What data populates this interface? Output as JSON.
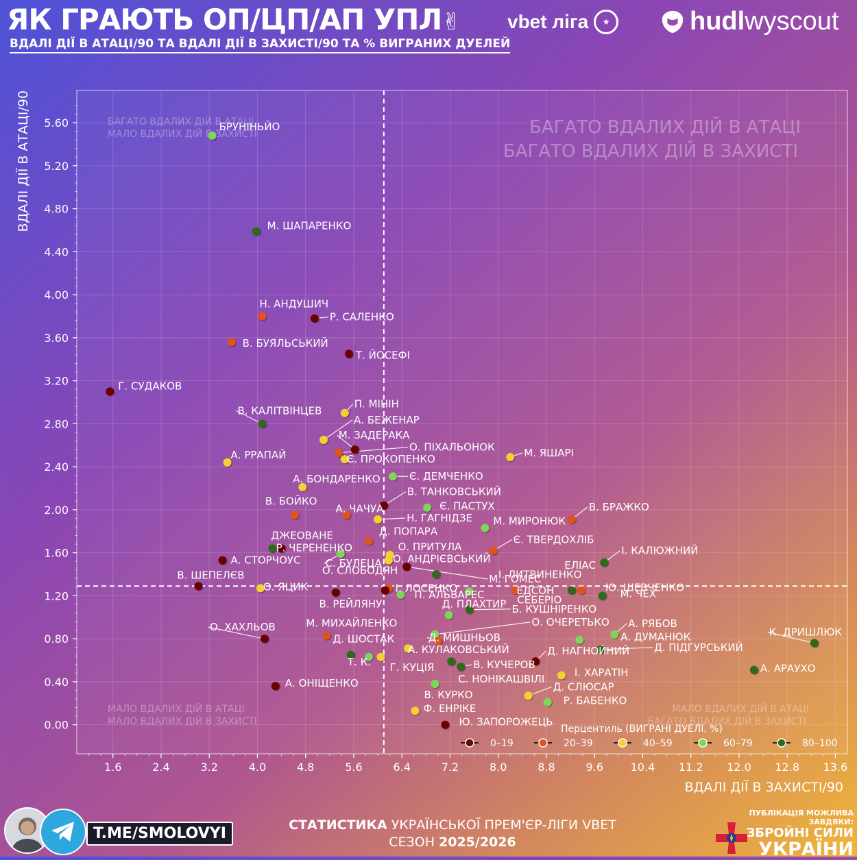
{
  "header": {
    "title": "ЯК ГРАЮТЬ ОП/ЦП/АП УПЛ",
    "subtitle": "ВДАЛІ ДІЇ В АТАЦІ/90 ТА ВДАЛІ ДІЇ В ЗАХИСТІ/90 ТА % ВИГРАНИХ ДУЕЛЕЙ",
    "league_logo_text": "vbet ліга",
    "brand_bold": "hudl",
    "brand_light": "wyscout"
  },
  "footer": {
    "handle": "T.ME/SMOLOVYI",
    "stats_line1_bold": "СТАТИСТИКА",
    "stats_line1_rest": " УКРАЇНСЬКОЇ ПРЕМ'ЄР-ЛІГИ VBET",
    "stats_line2_prefix": "СЕЗОН ",
    "stats_line2_bold": "2025/2026",
    "zsu_small": "ПУБЛІКАЦІЯ МОЖЛИВА ЗАВДЯКИ:",
    "zsu_line1": "ЗБРОЙНІ СИЛИ",
    "zsu_line2": "УКРАЇНИ"
  },
  "colors": {
    "0-19": "#6b0606",
    "20-39": "#e0521a",
    "40-59": "#f5d030",
    "60-79": "#7dd65a",
    "80-100": "#2f6a1e"
  },
  "chart_data": {
    "type": "scatter",
    "xlabel": "ВДАЛІ ДІЇ В ЗАХИСТІ/90",
    "ylabel": "ВДАЛІ ДІЇ В АТАЦІ/90",
    "xlim": [
      1.0,
      13.8
    ],
    "ylim": [
      -0.27,
      5.9
    ],
    "xticks": [
      1.6,
      2.4,
      3.2,
      4.0,
      4.8,
      5.6,
      6.4,
      7.2,
      8.0,
      8.8,
      9.6,
      10.4,
      11.2,
      12.0,
      12.8,
      13.6
    ],
    "yticks": [
      0.0,
      0.4,
      0.8,
      1.2,
      1.6,
      2.0,
      2.4,
      2.8,
      3.2,
      3.6,
      4.0,
      4.4,
      4.8,
      5.2,
      5.6
    ],
    "mean_x": 6.1,
    "mean_y": 1.29,
    "quadrants": {
      "top_left_1": "БАГАТО ВДАЛИХ ДІЙ В АТАЦІ",
      "top_left_2": "МАЛО ВДАЛИХ ДІЙ В ЗАХИСТІ",
      "top_right_1": "БАГАТО ВДАЛИХ ДІЙ В АТАЦІ",
      "top_right_2": "БАГАТО ВДАЛИХ ДІЙ В ЗАХИСТІ",
      "bottom_left_1": "МАЛО ВДАЛИХ ДІЙ В АТАЦІ",
      "bottom_left_2": "МАЛО ВДАЛИХ ДІЙ В ЗАХИСТІ",
      "bottom_right_1": "МАЛО ВДАЛИХ ДІЙ В АТАЦІ",
      "bottom_right_2": "БАГАТО ВДАЛИХ ДІЙ В ЗАХИСТІ"
    },
    "legend": {
      "title": "Перцентиль (ВИГРАНІ ДУЕЛІ, %)",
      "entries": [
        "0–19",
        "20–39",
        "40–59",
        "60–79",
        "80–100"
      ],
      "keys": [
        "0-19",
        "20-39",
        "40-59",
        "60-79",
        "80-100"
      ],
      "placement": "bottom-right"
    },
    "points": [
      {
        "name": "БРУНІНЬЙО",
        "x": 3.25,
        "y": 5.48,
        "g": "60-79"
      },
      {
        "name": "М. ШАПАРЕНКО",
        "x": 3.98,
        "y": 4.59,
        "g": "80-100"
      },
      {
        "name": "Н. АНДУШИЧ",
        "x": 4.08,
        "y": 3.8,
        "g": "20-39"
      },
      {
        "name": "Р. САЛЕНКО",
        "x": 4.95,
        "y": 3.78,
        "g": "0-19"
      },
      {
        "name": "В. БУЯЛЬСЬКИЙ",
        "x": 3.57,
        "y": 3.56,
        "g": "20-39"
      },
      {
        "name": "Т. ЙОСЕФІ",
        "x": 5.52,
        "y": 3.45,
        "g": "0-19"
      },
      {
        "name": "Г. СУДАКОВ",
        "x": 1.55,
        "y": 3.1,
        "g": "0-19"
      },
      {
        "name": "П. МІНІН",
        "x": 5.45,
        "y": 2.9,
        "g": "40-59"
      },
      {
        "name": "В. КАЛІТВІНЦЕВ",
        "x": 4.08,
        "y": 2.8,
        "g": "80-100"
      },
      {
        "name": "А. БЕЖЕНАР",
        "x": 5.1,
        "y": 2.65,
        "g": "40-59"
      },
      {
        "name": "М. ЗАДЕРАКА",
        "x": 5.62,
        "y": 2.56,
        "g": "0-19"
      },
      {
        "name": "О. ПІХАЛЬОНОК",
        "x": 5.35,
        "y": 2.53,
        "g": "20-39"
      },
      {
        "name": "М. ЯШАРІ",
        "x": 8.2,
        "y": 2.49,
        "g": "40-59"
      },
      {
        "name": "Є. ПРОКОПЕНКО",
        "x": 5.45,
        "y": 2.47,
        "g": "40-59"
      },
      {
        "name": "А. РРАПАЙ",
        "x": 3.5,
        "y": 2.44,
        "g": "40-59"
      },
      {
        "name": "Є. ДЕМЧЕНКО",
        "x": 6.25,
        "y": 2.31,
        "g": "60-79"
      },
      {
        "name": "А. БОНДАРЕНКО",
        "x": 4.75,
        "y": 2.21,
        "g": "40-59"
      },
      {
        "name": "В. ТАНКОВСЬКИЙ",
        "x": 6.1,
        "y": 2.04,
        "g": "0-19"
      },
      {
        "name": "Є. ПАСТУХ",
        "x": 6.82,
        "y": 2.02,
        "g": "60-79"
      },
      {
        "name": "В. БОЙКО",
        "x": 4.62,
        "y": 1.95,
        "g": "20-39"
      },
      {
        "name": "А. ЧАЧУА",
        "x": 5.48,
        "y": 1.95,
        "g": "20-39"
      },
      {
        "name": "Н. ГАГНІДЗЕ",
        "x": 6.0,
        "y": 1.91,
        "g": "40-59"
      },
      {
        "name": "В. БРАЖКО",
        "x": 9.22,
        "y": 1.91,
        "g": "20-39"
      },
      {
        "name": "М. МИРОНЮК",
        "x": 7.78,
        "y": 1.83,
        "g": "60-79"
      },
      {
        "name": "Д. ПОПАРА",
        "x": 5.85,
        "y": 1.71,
        "g": "20-39"
      },
      {
        "name": "ДЖЕОВАНЕ",
        "x": 4.25,
        "y": 1.64,
        "g": "80-100"
      },
      {
        "name": "Р. ЧЕРЕНЕНКО",
        "x": 4.4,
        "y": 1.64,
        "g": "0-19"
      },
      {
        "name": "О. ПРИТУЛА",
        "x": 6.2,
        "y": 1.58,
        "g": "40-59"
      },
      {
        "name": "Є. ТВЕРДОХЛІБ",
        "x": 7.92,
        "y": 1.62,
        "g": "20-39"
      },
      {
        "name": "А. СТОРЧОУС",
        "x": 3.42,
        "y": 1.53,
        "g": "0-19"
      },
      {
        "name": "С. БУЛЕЦА",
        "x": 5.38,
        "y": 1.59,
        "g": "60-79"
      },
      {
        "name": "О. АНДРІЄВСЬКИЙ",
        "x": 6.18,
        "y": 1.53,
        "g": "40-59"
      },
      {
        "name": "І. КАЛЮЖНИЙ",
        "x": 9.76,
        "y": 1.51,
        "g": "80-100"
      },
      {
        "name": "М. ГОМЕС",
        "x": 6.48,
        "y": 1.47,
        "g": "0-19"
      },
      {
        "name": "ЕЛІАС",
        "x": 6.97,
        "y": 1.4,
        "g": "80-100"
      },
      {
        "name": "О. СЛОБОДЯН",
        "x": 6.18,
        "y": 1.27,
        "g": "20-39"
      },
      {
        "name": "І. ЛИТВИНЕНКО",
        "x": 9.22,
        "y": 1.25,
        "g": "80-100"
      },
      {
        "name": "Ю. ШЕВЧЕНКО",
        "x": 9.38,
        "y": 1.25,
        "g": "20-39"
      },
      {
        "name": "В. ШЕПЕЛЄВ",
        "x": 3.02,
        "y": 1.29,
        "g": "0-19"
      },
      {
        "name": "О. ЯЦИК",
        "x": 4.05,
        "y": 1.27,
        "g": "40-59"
      },
      {
        "name": "І. ЛОСЕНКО",
        "x": 6.12,
        "y": 1.25,
        "g": "0-19"
      },
      {
        "name": "В. РЕЙЛЯНУ",
        "x": 5.3,
        "y": 1.23,
        "g": "0-19"
      },
      {
        "name": "П. АЛЬВАРЕС",
        "x": 6.38,
        "y": 1.21,
        "g": "60-79"
      },
      {
        "name": "ЕДСОН",
        "x": 7.52,
        "y": 1.24,
        "g": "60-79"
      },
      {
        "name": "М. ЧЕХ",
        "x": 9.73,
        "y": 1.2,
        "g": "80-100"
      },
      {
        "name": "СЕБЕРІО",
        "x": 8.28,
        "y": 1.25,
        "g": "20-39"
      },
      {
        "name": "Б. КУШНІРЕНКО",
        "x": 7.52,
        "y": 1.07,
        "g": "80-100"
      },
      {
        "name": "О. ХАХЛЬОВ",
        "x": 4.12,
        "y": 0.8,
        "g": "0-19"
      },
      {
        "name": "М. МИХАЙЛЕНКО",
        "x": 5.15,
        "y": 0.83,
        "g": "20-39"
      },
      {
        "name": "Д. ПЛАХТИР",
        "x": 7.18,
        "y": 1.02,
        "g": "60-79"
      },
      {
        "name": "А. РЯБОВ",
        "x": 9.93,
        "y": 0.84,
        "g": "60-79"
      },
      {
        "name": "О. ОЧЕРЕТЬКО",
        "x": 6.95,
        "y": 0.84,
        "g": "60-79"
      },
      {
        "name": "К. ДРИШЛЮК",
        "x": 13.25,
        "y": 0.76,
        "g": "80-100"
      },
      {
        "name": "А. ДУМАНЮК",
        "x": 9.35,
        "y": 0.79,
        "g": "60-79"
      },
      {
        "name": "Д. ШОСТАК",
        "x": 5.55,
        "y": 0.65,
        "g": "80-100"
      },
      {
        "name": "Д. МИШНЬОВ",
        "x": 7.0,
        "y": 0.78,
        "g": "20-39"
      },
      {
        "name": "Д. ПІДГУРСЬКИЙ",
        "x": 9.7,
        "y": 0.7,
        "g": "80-100"
      },
      {
        "name": "А. КУЛАКОВСЬКИЙ",
        "x": 6.5,
        "y": 0.71,
        "g": "40-59"
      },
      {
        "name": "Д. НАГНОЙНИЙ",
        "x": 8.62,
        "y": 0.59,
        "g": "0-19"
      },
      {
        "name": "Т. К.",
        "x": 5.85,
        "y": 0.63,
        "g": "60-79"
      },
      {
        "name": "Г. КУЦІЯ",
        "x": 6.05,
        "y": 0.63,
        "g": "40-59"
      },
      {
        "name": "В. КУЧЕРОВ",
        "x": 7.38,
        "y": 0.54,
        "g": "80-100"
      },
      {
        "name": "І. ХАРАТІН",
        "x": 9.05,
        "y": 0.46,
        "g": "40-59"
      },
      {
        "name": "А. АРАУХО",
        "x": 12.25,
        "y": 0.51,
        "g": "80-100"
      },
      {
        "name": "С. НОНІКАШВІЛІ",
        "x": 7.22,
        "y": 0.59,
        "g": "80-100"
      },
      {
        "name": "А. ОНІЩЕНКО",
        "x": 4.3,
        "y": 0.36,
        "g": "0-19"
      },
      {
        "name": "В. КУРКО",
        "x": 6.95,
        "y": 0.38,
        "g": "60-79"
      },
      {
        "name": "Д. СЛЮСАР",
        "x": 8.5,
        "y": 0.27,
        "g": "40-59"
      },
      {
        "name": "Р. БАБЕНКО",
        "x": 8.82,
        "y": 0.21,
        "g": "60-79"
      },
      {
        "name": "Ф. ЕНРІКЕ",
        "x": 6.62,
        "y": 0.13,
        "g": "40-59"
      },
      {
        "name": "Ю. ЗАПОРОЖЕЦЬ",
        "x": 7.12,
        "y": 0.0,
        "g": "0-19"
      }
    ]
  }
}
